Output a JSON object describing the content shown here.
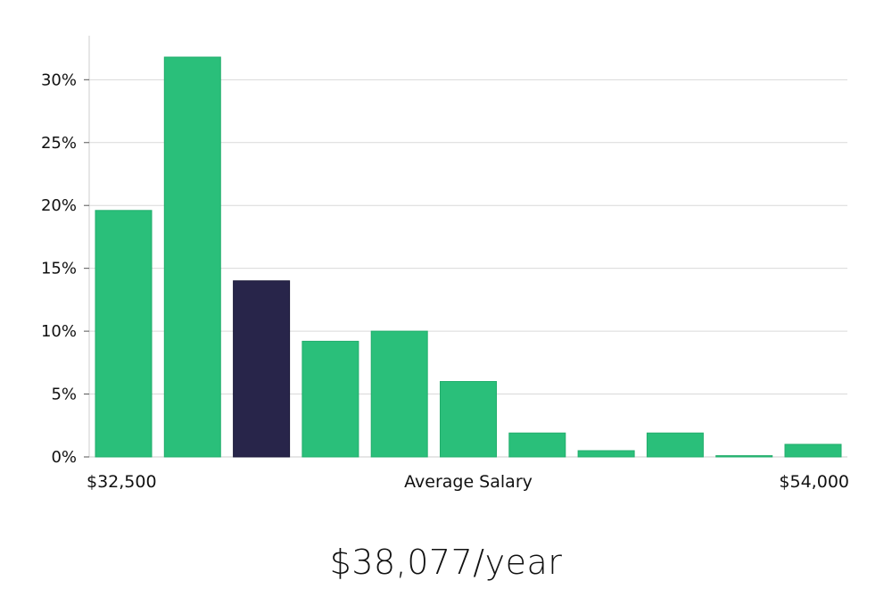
{
  "chart_data": {
    "type": "bar",
    "values": [
      19.6,
      31.8,
      14.0,
      9.2,
      10.0,
      6.0,
      1.9,
      0.5,
      1.9,
      0.1,
      1.0
    ],
    "highlight_index": 2,
    "ylim": [
      0,
      33.5
    ],
    "yticks": [
      0,
      5,
      10,
      15,
      20,
      25,
      30
    ],
    "ytick_labels": [
      "0%",
      "5%",
      "10%",
      "15%",
      "20%",
      "25%",
      "30%"
    ],
    "x_min_label": "$32,500",
    "x_max_label": "$54,000",
    "xlabel": "Average Salary",
    "grid": true,
    "colors": {
      "bar": "#2abf7a",
      "highlight": "#28254a",
      "grid": "#d9d9d9",
      "axis": "#cccccc"
    }
  },
  "salary_label": "$38,077/year"
}
